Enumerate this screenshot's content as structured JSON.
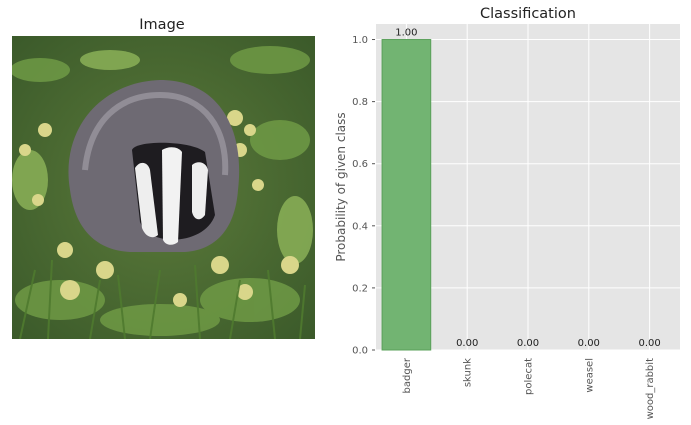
{
  "left_panel": {
    "title": "Image",
    "image_subject": "badger-photo"
  },
  "chart_data": {
    "type": "bar",
    "title": "Classification",
    "xlabel": "",
    "ylabel": "Probability of given class",
    "categories": [
      "badger",
      "skunk",
      "polecat",
      "weasel",
      "wood_rabbit"
    ],
    "values": [
      1.0,
      0.0,
      0.0,
      0.0,
      0.0
    ],
    "data_labels": [
      "1.00",
      "0.00",
      "0.00",
      "0.00",
      "0.00"
    ],
    "ylim": [
      0,
      1.05
    ],
    "yticks": [
      0.0,
      0.2,
      0.4,
      0.6,
      0.8,
      1.0
    ],
    "ytick_labels": [
      "0.0",
      "0.2",
      "0.4",
      "0.6",
      "0.8",
      "1.0"
    ],
    "grid": true,
    "colors": {
      "bar": "#72b472",
      "bar_edge": "#5aa05a",
      "plot_background": "#e5e5e5",
      "grid": "#ffffff"
    }
  }
}
